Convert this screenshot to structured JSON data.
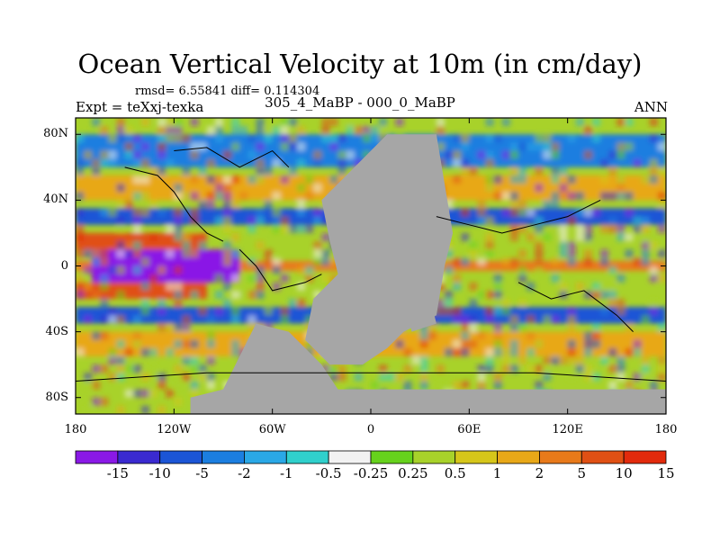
{
  "title": "Ocean Vertical Velocity at 10m (in cm/day)",
  "stats": "rmsd= 6.55841 diff= 0.114304",
  "expt": "Expt = teXxj-texka",
  "comparison": "305_4_MaBP - 000_0_MaBP",
  "season": "ANN",
  "lat_ticks": [
    {
      "label": "80N",
      "value": 80
    },
    {
      "label": "40N",
      "value": 40
    },
    {
      "label": "0",
      "value": 0
    },
    {
      "label": "40S",
      "value": -40
    },
    {
      "label": "80S",
      "value": -80
    }
  ],
  "lon_ticks": [
    {
      "label": "180",
      "value": -180
    },
    {
      "label": "120W",
      "value": -120
    },
    {
      "label": "60W",
      "value": -60
    },
    {
      "label": "0",
      "value": 0
    },
    {
      "label": "60E",
      "value": 60
    },
    {
      "label": "120E",
      "value": 120
    },
    {
      "label": "180",
      "value": 180
    }
  ],
  "colorbar": {
    "colors": [
      "#8a19e6",
      "#3a2ad0",
      "#1b55d6",
      "#1b7ee0",
      "#2aa8e6",
      "#30d0cc",
      "#f2f2f2",
      "#66d21c",
      "#a8d22a",
      "#d6c61a",
      "#e8a818",
      "#e87a1a",
      "#e05014",
      "#e22a0c"
    ],
    "labels": [
      "-15",
      "-10",
      "-5",
      "-2",
      "-1",
      "-0.5",
      "-0.25",
      "0.25",
      "0.5",
      "1",
      "2",
      "5",
      "10",
      "15"
    ]
  },
  "land_color": "#a6a6a6",
  "chart_data": {
    "type": "heatmap",
    "title": "Ocean Vertical Velocity at 10m (in cm/day)",
    "xlim": [
      -180,
      180
    ],
    "ylim": [
      -90,
      90
    ],
    "levels": [
      -15,
      -10,
      -5,
      -2,
      -1,
      -0.5,
      -0.25,
      0.25,
      0.5,
      1,
      2,
      5,
      10,
      15
    ],
    "regions": [
      {
        "lon": [
          -180,
          180
        ],
        "lat": [
          -3,
          3
        ],
        "level": 5
      },
      {
        "lon": [
          -170,
          -80
        ],
        "lat": [
          -10,
          10
        ],
        "level": -15
      },
      {
        "lon": [
          -180,
          -100
        ],
        "lat": [
          10,
          20
        ],
        "level": 10
      },
      {
        "lon": [
          -180,
          -100
        ],
        "lat": [
          -20,
          -10
        ],
        "level": 10
      },
      {
        "lon": [
          -180,
          180
        ],
        "lat": [
          25,
          35
        ],
        "level": -5
      },
      {
        "lon": [
          -180,
          180
        ],
        "lat": [
          -35,
          -25
        ],
        "level": -5
      },
      {
        "lon": [
          -180,
          180
        ],
        "lat": [
          40,
          55
        ],
        "level": 2
      },
      {
        "lon": [
          -180,
          180
        ],
        "lat": [
          -55,
          -40
        ],
        "level": 2
      },
      {
        "lon": [
          -180,
          180
        ],
        "lat": [
          60,
          80
        ],
        "level": -2
      }
    ]
  }
}
